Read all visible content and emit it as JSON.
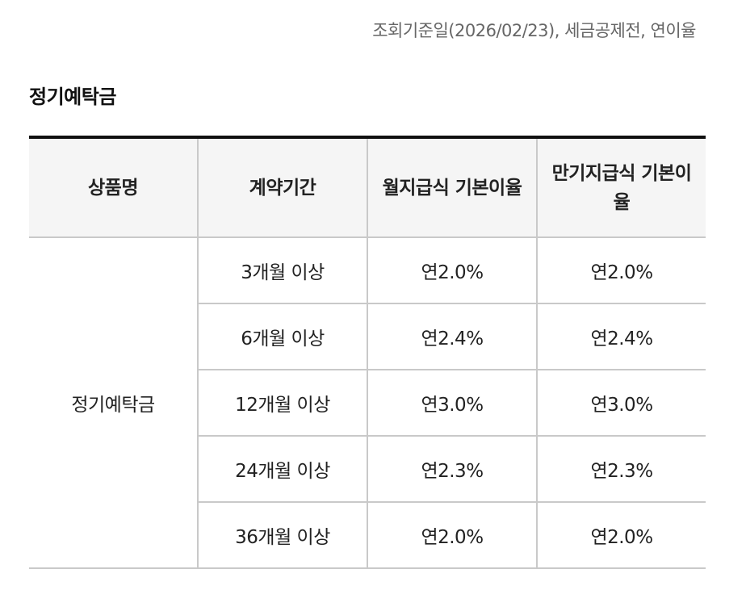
{
  "basis_note": "조회기준일(2026/02/23), 세금공제전, 연이율",
  "section_title": "정기예탁금",
  "table": {
    "headers": [
      "상품명",
      "계약기간",
      "월지급식 기본이율",
      "만기지급식 기본이율"
    ],
    "product_name": "정기예탁금",
    "rows": [
      {
        "period": "3개월 이상",
        "monthly_rate": "연2.0%",
        "maturity_rate": "연2.0%"
      },
      {
        "period": "6개월 이상",
        "monthly_rate": "연2.4%",
        "maturity_rate": "연2.4%"
      },
      {
        "period": "12개월 이상",
        "monthly_rate": "연3.0%",
        "maturity_rate": "연3.0%"
      },
      {
        "period": "24개월 이상",
        "monthly_rate": "연2.3%",
        "maturity_rate": "연2.3%"
      },
      {
        "period": "36개월 이상",
        "monthly_rate": "연2.0%",
        "maturity_rate": "연2.0%"
      }
    ]
  }
}
